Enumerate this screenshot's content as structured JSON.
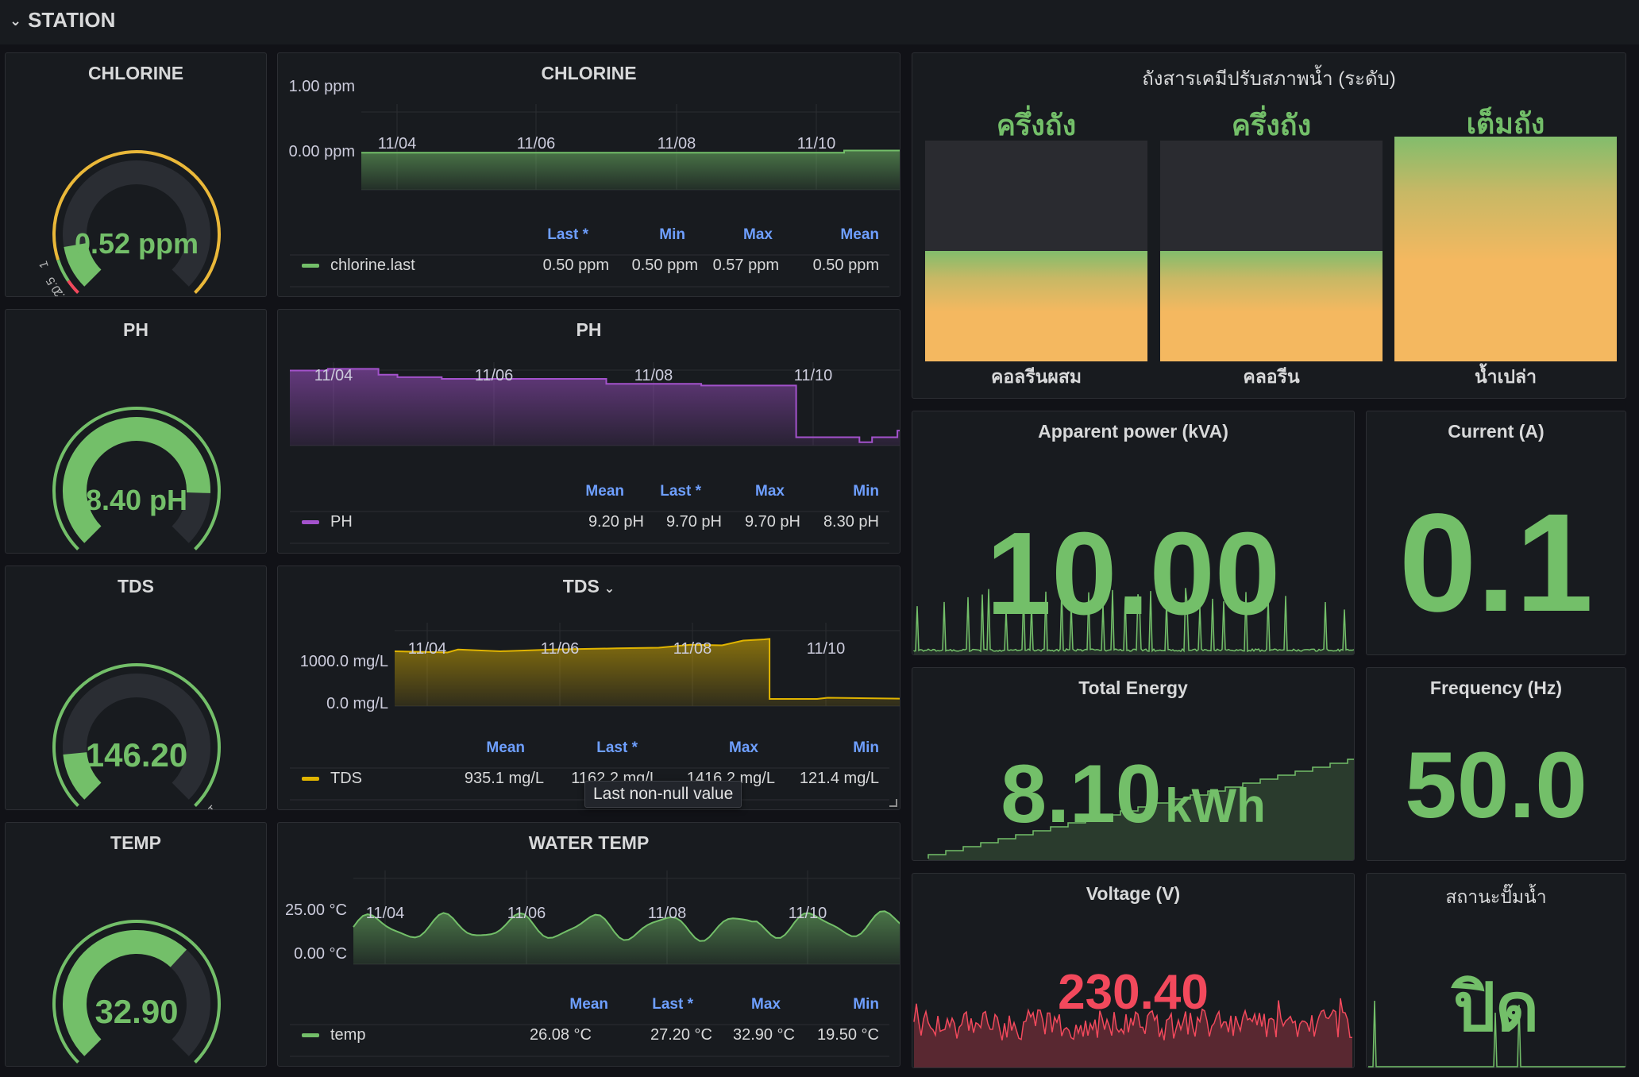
{
  "row": {
    "title": "STATION"
  },
  "gauges": [
    {
      "title": "CHLORINE",
      "value": "0.52 ppm",
      "fraction": 0.13,
      "ticks": [
        "0",
        "0.2",
        "0.5",
        "1",
        "4"
      ]
    },
    {
      "title": "PH",
      "value": "8.40 pH",
      "fraction": 0.84,
      "ticks": [
        "0",
        "10"
      ]
    },
    {
      "title": "TDS",
      "value": "146.20",
      "fraction": 0.146,
      "ticks": [
        "0",
        "1000"
      ]
    },
    {
      "title": "TEMP",
      "value": "32.90",
      "fraction": 0.658,
      "ticks": [
        "0",
        "50"
      ]
    }
  ],
  "timeseries": [
    {
      "title": "CHLORINE",
      "color": "#73bf69",
      "yticks": [
        "1.00 ppm",
        "0.00 ppm"
      ],
      "xticks": [
        "11/04",
        "11/06",
        "11/08",
        "11/10"
      ],
      "headers": [
        "Last *",
        "Min",
        "Max",
        "Mean"
      ],
      "series": "chlorine.last",
      "values": [
        "0.50 ppm",
        "0.50 ppm",
        "0.57 ppm",
        "0.50 ppm"
      ]
    },
    {
      "title": "PH",
      "color": "#a352cc",
      "yticks": [],
      "xticks": [
        "11/04",
        "11/06",
        "11/08",
        "11/10"
      ],
      "headers": [
        "Mean",
        "Last *",
        "Max",
        "Min"
      ],
      "series": "PH",
      "values": [
        "9.20 pH",
        "9.70 pH",
        "9.70 pH",
        "8.30 pH"
      ]
    },
    {
      "title": "TDS",
      "color": "#e0b400",
      "yticks": [
        "1000.0 mg/L",
        "0.0 mg/L"
      ],
      "xticks": [
        "11/04",
        "11/06",
        "11/08",
        "11/10"
      ],
      "headers": [
        "Mean",
        "Last *",
        "Max",
        "Min"
      ],
      "series": "TDS",
      "values": [
        "935.1 mg/L",
        "1162.2 mg/L",
        "1416.2 mg/L",
        "121.4 mg/L"
      ]
    },
    {
      "title": "WATER TEMP",
      "color": "#73bf69",
      "yticks": [
        "25.00 °C",
        "0.00 °C"
      ],
      "xticks": [
        "11/04",
        "11/06",
        "11/08",
        "11/10"
      ],
      "headers": [
        "Mean",
        "Last *",
        "Max",
        "Min"
      ],
      "series": "temp",
      "values": [
        "26.08 °C",
        "27.20 °C",
        "32.90 °C",
        "19.50 °C"
      ]
    }
  ],
  "tooltip": "Last non-null value",
  "tanks": {
    "title": "ถังสารเคมีปรับสภาพน้ำ (ระดับ)",
    "items": [
      {
        "status": "ครึ่งถัง",
        "label": "คอลรีนผสม",
        "level": 0.5
      },
      {
        "status": "ครึ่งถัง",
        "label": "คลอรีน",
        "level": 0.5
      },
      {
        "status": "เต็มถัง",
        "label": "น้ำเปล่า",
        "level": 1.0
      }
    ]
  },
  "stats": {
    "apparent_power": {
      "title": "Apparent power (kVA)",
      "value": "10.00"
    },
    "current": {
      "title": "Current (A)",
      "value": "0.1"
    },
    "total_energy": {
      "title": "Total Energy",
      "value": "8.10",
      "unit": "kWh"
    },
    "frequency": {
      "title": "Frequency (Hz)",
      "value": "50.0"
    },
    "voltage": {
      "title": "Voltage (V)",
      "value": "230.40"
    },
    "pump": {
      "title": "สถานะปั๊มน้ำ",
      "value": "ปิด"
    }
  },
  "colors": {
    "green": "#73bf69",
    "red": "#f2495c",
    "yellow": "#fade2a",
    "orange": "#f4b860"
  }
}
